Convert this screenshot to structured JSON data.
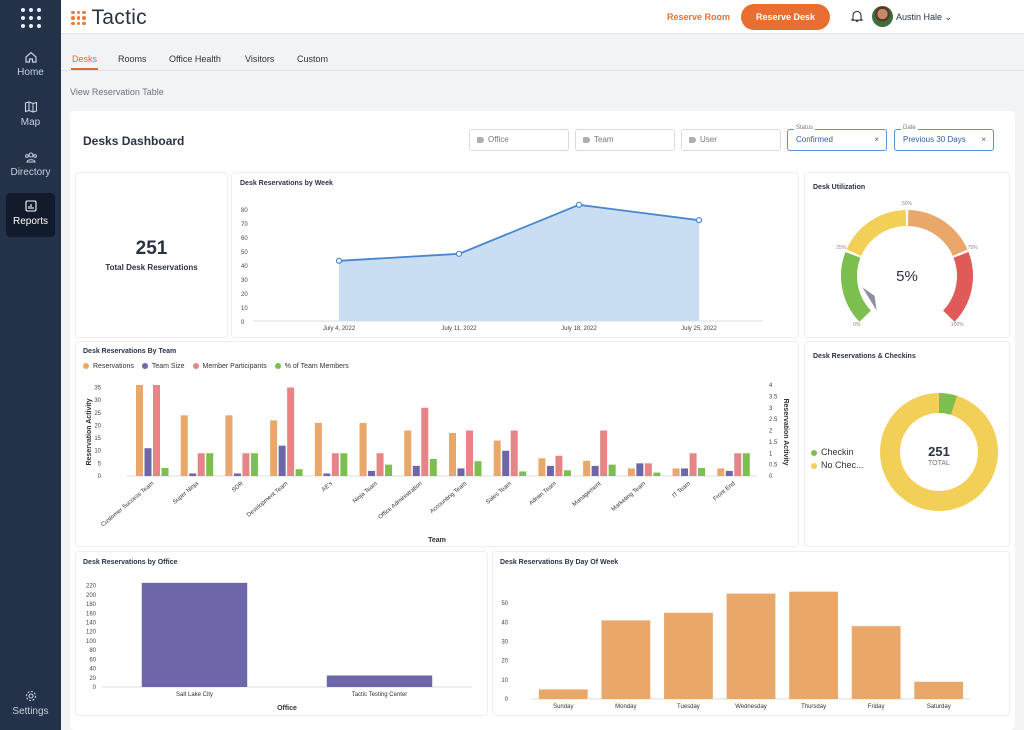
{
  "sidebar": {
    "items": [
      {
        "label": "Home",
        "icon": "home-icon"
      },
      {
        "label": "Map",
        "icon": "map-icon"
      },
      {
        "label": "Directory",
        "icon": "directory-icon"
      },
      {
        "label": "Reports",
        "icon": "reports-icon",
        "active": true
      },
      {
        "label": "Settings",
        "icon": "gear-icon"
      }
    ]
  },
  "header": {
    "logo": "Tactic",
    "reserve_room": "Reserve Room",
    "reserve_desk": "Reserve Desk",
    "user": "Austin Hale"
  },
  "tabs": [
    "Desks",
    "Rooms",
    "Office Health",
    "Visitors",
    "Custom"
  ],
  "view_link": "View Reservation Table",
  "dashboard": {
    "title": "Desks Dashboard",
    "filters": {
      "office": "Office",
      "team": "Team",
      "user": "User",
      "status_label": "Status",
      "status_value": "Confirmed",
      "date_label": "Date",
      "date_value": "Previous 30 Days"
    }
  },
  "total": {
    "value": "251",
    "label": "Total Desk Reservations"
  },
  "colors": {
    "orange": "#e9a76a",
    "purple": "#6d66a9",
    "pink": "#e58586",
    "green": "#7cbf4f",
    "blue": "#4a86cf",
    "yellow": "#f2cf57",
    "red": "#df5a58",
    "brand": "#ea6e31"
  },
  "chart_data": [
    {
      "type": "area",
      "title": "Desk Reservations by Week",
      "categories": [
        "July 4, 2022",
        "July 11, 2022",
        "July 18, 2022",
        "July 25, 2022"
      ],
      "values": [
        43,
        48,
        83,
        72
      ],
      "yticks": [
        "0",
        "10",
        "20",
        "30",
        "40",
        "50",
        "60",
        "70",
        "80"
      ],
      "ylim": [
        0,
        85
      ]
    },
    {
      "type": "gauge",
      "title": "Desk Utilization",
      "value_label": "5%",
      "value": 5,
      "tick_labels": [
        "0%",
        "25%",
        "50%",
        "75%",
        "100%"
      ]
    },
    {
      "type": "bar",
      "title": "Desk Reservations By Team",
      "xlabel": "Team",
      "ylabel": "Reservation Activity",
      "y2label": "Reservation Activity",
      "yticks": [
        "0",
        "5",
        "10",
        "15",
        "20",
        "25",
        "30",
        "35"
      ],
      "y2ticks": [
        "0",
        "0.5",
        "1",
        "1.5",
        "2",
        "2.5",
        "3",
        "3.5",
        "4"
      ],
      "categories": [
        "Customer Success Team",
        "Super Ninja",
        "SDR",
        "Development Team",
        "AE's",
        "Ninja Team",
        "Office Administration",
        "Accounting Team",
        "Sales Team",
        "Admin Team",
        "Management",
        "Marketing Team",
        "IT Team",
        "Front End"
      ],
      "series": [
        {
          "name": "Reservations",
          "values": [
            36,
            24,
            24,
            22,
            21,
            21,
            18,
            17,
            14,
            7,
            6,
            3,
            3,
            3
          ]
        },
        {
          "name": "Team Size",
          "values": [
            11,
            1,
            1,
            12,
            1,
            2,
            4,
            3,
            10,
            4,
            4,
            5,
            3,
            2
          ]
        },
        {
          "name": "Member Participants",
          "values": [
            36,
            9,
            9,
            35,
            9,
            9,
            27,
            18,
            18,
            8,
            18,
            5,
            9,
            9
          ]
        },
        {
          "name": "% of Team Members",
          "values": [
            0.35,
            1,
            1,
            0.3,
            1,
            0.5,
            0.75,
            0.65,
            0.2,
            0.25,
            0.5,
            0.15,
            0.35,
            1
          ]
        }
      ]
    },
    {
      "type": "pie",
      "title": "Desk Reservations & Checkins",
      "total_value": "251",
      "total_label": "TOTAL",
      "series": [
        {
          "name": "Checkin",
          "values": [
            5
          ]
        },
        {
          "name": "No Chec...",
          "values": [
            95
          ]
        }
      ]
    },
    {
      "type": "bar",
      "title": "Desk Reservations by Office",
      "xlabel": "Office",
      "categories": [
        "Salt Lake City",
        "Tactic Testing Center"
      ],
      "values": [
        226,
        25
      ],
      "yticks": [
        "0",
        "20",
        "40",
        "60",
        "80",
        "100",
        "120",
        "140",
        "160",
        "180",
        "200",
        "220"
      ],
      "ylim": [
        0,
        230
      ]
    },
    {
      "type": "bar",
      "title": "Desk Reservations By Day Of Week",
      "categories": [
        "Sunday",
        "Monday",
        "Tuesday",
        "Wednesday",
        "Thursday",
        "Friday",
        "Saturday"
      ],
      "values": [
        5,
        41,
        45,
        55,
        56,
        38,
        9
      ],
      "yticks": [
        "0",
        "10",
        "20",
        "30",
        "40",
        "50"
      ],
      "ylim": [
        0,
        60
      ]
    }
  ]
}
